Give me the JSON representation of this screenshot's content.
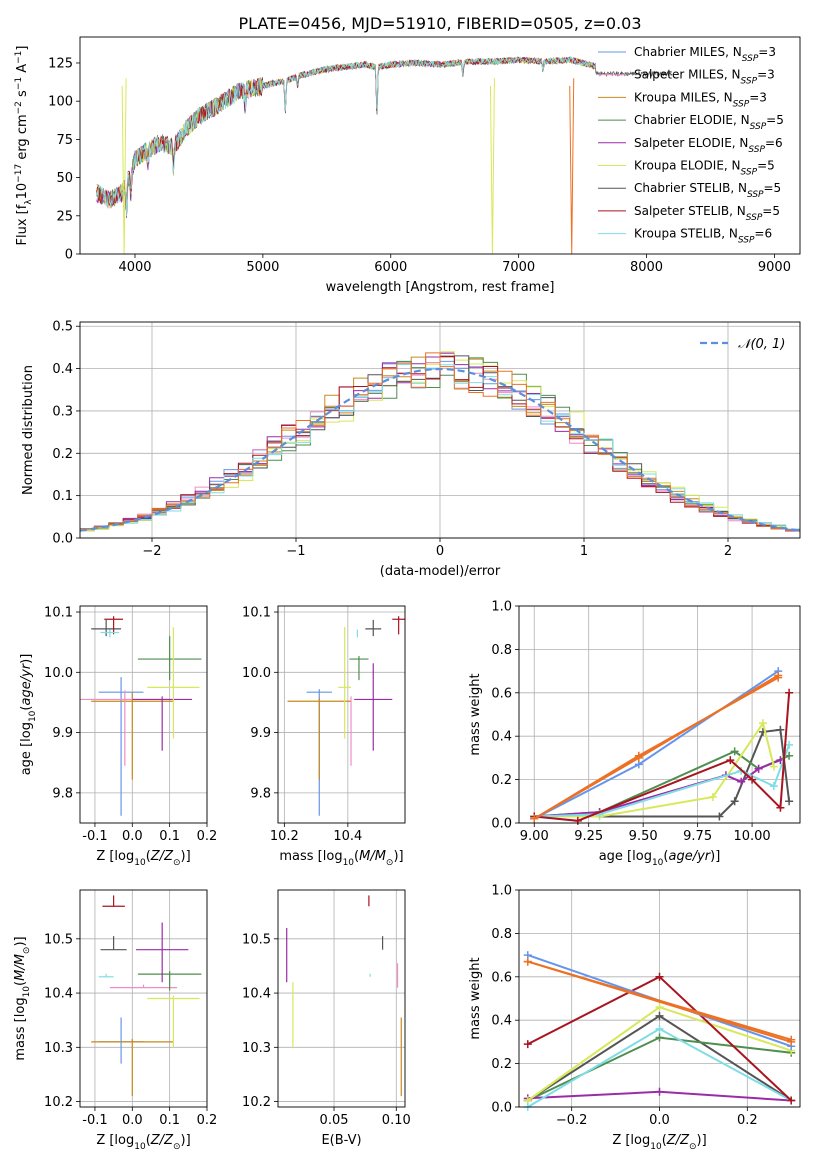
{
  "figure_title": "PLATE=0456, MJD=51910, FIBERID=0505, z=0.03",
  "colors": {
    "Chabrier MILES": "#6495ED",
    "Salpeter MILES": "#F08CC6",
    "Kroupa MILES": "#C88A1E",
    "Chabrier ELODIE": "#4E8E4E",
    "Salpeter ELODIE": "#9B2CA8",
    "Kroupa ELODIE": "#D8E85A",
    "Chabrier STELIB": "#555555",
    "Salpeter STELIB": "#A81420",
    "Kroupa STELIB": "#7FDDE6",
    "orange_fit": "#ED7125",
    "gauss": "#5B8FDB"
  },
  "chart_data": [
    {
      "id": "spectrum",
      "type": "line",
      "title": "PLATE=0456, MJD=51910, FIBERID=0505, z=0.03",
      "xlabel": "wavelength [Angstrom, rest frame]",
      "ylabel": "Flux [f_λ 10^-17 erg cm^-2 s^-1 A^-1]",
      "xlim": [
        3570,
        9200
      ],
      "ylim": [
        0,
        142
      ],
      "xticks": [
        4000,
        5000,
        6000,
        7000,
        8000,
        9000
      ],
      "yticks": [
        0,
        25,
        50,
        75,
        100,
        125
      ],
      "grid": false,
      "legend_position": "top-right",
      "legend": [
        {
          "label": "Chabrier MILES, N",
          "sub": "SSP",
          "value": "=3",
          "color": "#6495ED"
        },
        {
          "label": "Salpeter MILES, N",
          "sub": "SSP",
          "value": "=3",
          "color": "#F08CC6"
        },
        {
          "label": "Kroupa MILES, N",
          "sub": "SSP",
          "value": "=3",
          "color": "#C88A1E"
        },
        {
          "label": "Chabrier ELODIE, N",
          "sub": "SSP",
          "value": "=5",
          "color": "#4E8E4E"
        },
        {
          "label": "Salpeter ELODIE, N",
          "sub": "SSP",
          "value": "=6",
          "color": "#9B2CA8"
        },
        {
          "label": "Kroupa ELODIE, N",
          "sub": "SSP",
          "value": "=5",
          "color": "#D8E85A"
        },
        {
          "label": "Chabrier STELIB, N",
          "sub": "SSP",
          "value": "=5",
          "color": "#555555"
        },
        {
          "label": "Salpeter STELIB, N",
          "sub": "SSP",
          "value": "=5",
          "color": "#A81420"
        },
        {
          "label": "Kroupa STELIB, N",
          "sub": "SSP",
          "value": "=6",
          "color": "#7FDDE6"
        }
      ],
      "continuum": [
        [
          3700,
          40
        ],
        [
          3800,
          35
        ],
        [
          3900,
          40
        ],
        [
          3960,
          52
        ],
        [
          4000,
          62
        ],
        [
          4100,
          68
        ],
        [
          4200,
          73
        ],
        [
          4300,
          70
        ],
        [
          4400,
          82
        ],
        [
          4500,
          90
        ],
        [
          4600,
          95
        ],
        [
          4700,
          100
        ],
        [
          4800,
          106
        ],
        [
          4900,
          108
        ],
        [
          5000,
          110
        ],
        [
          5100,
          112
        ],
        [
          5200,
          114
        ],
        [
          5300,
          117
        ],
        [
          5400,
          119
        ],
        [
          5500,
          121
        ],
        [
          5600,
          122
        ],
        [
          5700,
          123
        ],
        [
          5800,
          124
        ],
        [
          5900,
          122
        ],
        [
          6000,
          124
        ],
        [
          6200,
          125
        ],
        [
          6400,
          124
        ],
        [
          6600,
          126
        ],
        [
          6800,
          126
        ],
        [
          7000,
          127
        ],
        [
          7200,
          126
        ],
        [
          7400,
          127
        ],
        [
          7600,
          123
        ]
      ],
      "absorption": [
        [
          3933,
          18
        ],
        [
          3968,
          16
        ],
        [
          4102,
          9
        ],
        [
          4300,
          14
        ],
        [
          4861,
          10
        ],
        [
          5175,
          20
        ],
        [
          5270,
          6
        ],
        [
          5892,
          30
        ],
        [
          6563,
          8
        ],
        [
          7190,
          5
        ]
      ],
      "model_end": 7600,
      "drops": [
        {
          "x": 3915,
          "color": "#D8E85A"
        },
        {
          "x": 6795,
          "color": "#D8E85A"
        },
        {
          "x": 7415,
          "color": "#ED7125"
        }
      ]
    },
    {
      "id": "residual_histogram",
      "type": "histogram",
      "xlabel": "(data-model)/error",
      "ylabel": "Normed distribution",
      "xlim": [
        -2.5,
        2.5
      ],
      "ylim": [
        0,
        0.51
      ],
      "xticks": [
        -2,
        -1,
        0,
        1,
        2
      ],
      "yticks": [
        0.0,
        0.1,
        0.2,
        0.3,
        0.4,
        0.5
      ],
      "grid": true,
      "bin_width": 0.1,
      "legend_position": "top-right",
      "legend": {
        "label": "𝒩(0, 1)",
        "style": "dashed"
      },
      "reference_curve": "standard normal"
    },
    {
      "id": "age_vs_Z",
      "type": "errorbar",
      "xlabel": "Z [log10(Z/Z⊙)]",
      "ylabel": "age [log10(age/yr)]",
      "xlim": [
        -0.14,
        0.2
      ],
      "ylim": [
        9.75,
        10.11
      ],
      "xticks": [
        -0.1,
        0.0,
        0.1,
        0.2
      ],
      "yticks": [
        9.8,
        9.9,
        10.0,
        10.1
      ],
      "grid": true,
      "points": [
        {
          "series": "Chabrier MILES",
          "x": -0.03,
          "xerr": 0.06,
          "y": 9.967,
          "yerr_lo": 0.205,
          "yerr_hi": 0.025
        },
        {
          "series": "Kroupa MILES",
          "x": 0.0,
          "xerr": 0.11,
          "y": 9.952,
          "yerr_lo": 0.13,
          "yerr_hi": 0.015
        },
        {
          "series": "Salpeter MILES",
          "x": -0.02,
          "xerr": 0.12,
          "y": 9.955,
          "yerr_lo": 0.11,
          "yerr_hi": 0.015
        },
        {
          "series": "Chabrier ELODIE",
          "x": 0.1,
          "xerr": 0.085,
          "y": 10.022,
          "yerr_lo": 0.035,
          "yerr_hi": 0.038
        },
        {
          "series": "Salpeter ELODIE",
          "x": 0.08,
          "xerr": 0.08,
          "y": 9.955,
          "yerr_lo": 0.085,
          "yerr_hi": 0.0
        },
        {
          "series": "Kroupa ELODIE",
          "x": 0.11,
          "xerr": 0.07,
          "y": 9.975,
          "yerr_lo": 0.085,
          "yerr_hi": 0.1
        },
        {
          "series": "Chabrier STELIB",
          "x": -0.07,
          "xerr": 0.04,
          "y": 10.072,
          "yerr_lo": 0.012,
          "yerr_hi": 0.015
        },
        {
          "series": "Salpeter STELIB",
          "x": -0.05,
          "xerr": 0.025,
          "y": 10.088,
          "yerr_lo": 0.025,
          "yerr_hi": 0.0
        },
        {
          "series": "Kroupa STELIB",
          "x": -0.06,
          "xerr": 0.025,
          "y": 10.066,
          "yerr_lo": 0.008,
          "yerr_hi": 0.0
        }
      ]
    },
    {
      "id": "age_vs_mass",
      "type": "errorbar",
      "xlabel": "mass [log10(M/M⊙)]",
      "ylabel": "",
      "xlim": [
        10.18,
        10.58
      ],
      "ylim": [
        9.75,
        10.11
      ],
      "xticks": [
        10.2,
        10.4
      ],
      "yticks": [
        9.8,
        9.9,
        10.0,
        10.1
      ],
      "grid": true,
      "points": [
        {
          "series": "Chabrier MILES",
          "x": 10.31,
          "xerr": 0.04,
          "y": 9.967,
          "yerr_lo": 0.205,
          "yerr_hi": 0.0
        },
        {
          "series": "Kroupa MILES",
          "x": 10.31,
          "xerr": 0.1,
          "y": 9.952,
          "yerr_lo": 0.13,
          "yerr_hi": 0.0
        },
        {
          "series": "Salpeter MILES",
          "x": 10.41,
          "xerr": 0.0,
          "y": 9.955,
          "yerr_lo": 0.11,
          "yerr_hi": 0.0
        },
        {
          "series": "Chabrier ELODIE",
          "x": 10.435,
          "xerr": 0.03,
          "y": 10.022,
          "yerr_lo": 0.035,
          "yerr_hi": 0.0
        },
        {
          "series": "Salpeter ELODIE",
          "x": 10.48,
          "xerr": 0.06,
          "y": 9.955,
          "yerr_lo": 0.085,
          "yerr_hi": 0.06
        },
        {
          "series": "Kroupa ELODIE",
          "x": 10.39,
          "xerr": 0.02,
          "y": 9.975,
          "yerr_lo": 0.085,
          "yerr_hi": 0.1
        },
        {
          "series": "Chabrier STELIB",
          "x": 10.48,
          "xerr": 0.025,
          "y": 10.072,
          "yerr_lo": 0.012,
          "yerr_hi": 0.015
        },
        {
          "series": "Salpeter STELIB",
          "x": 10.56,
          "xerr": 0.02,
          "y": 10.088,
          "yerr_lo": 0.025,
          "yerr_hi": 0.0
        },
        {
          "series": "Kroupa STELIB",
          "x": 10.43,
          "xerr": 0.0,
          "y": 10.066,
          "yerr_lo": 0.008,
          "yerr_hi": 0.0
        }
      ]
    },
    {
      "id": "mass_weight_vs_age",
      "type": "line",
      "xlabel": "age [log10(age/yr)]",
      "ylabel": "mass weight",
      "xlim": [
        8.93,
        10.22
      ],
      "ylim": [
        0,
        1
      ],
      "xticks": [
        9.0,
        9.25,
        9.5,
        9.75,
        10.0
      ],
      "yticks": [
        0.0,
        0.2,
        0.4,
        0.6,
        0.8,
        1.0
      ],
      "grid": true,
      "series": [
        {
          "name": "Chabrier MILES",
          "x": [
            9.0,
            9.48,
            10.12
          ],
          "y": [
            0.02,
            0.27,
            0.7
          ]
        },
        {
          "name": "Kroupa MILES",
          "x": [
            9.0,
            9.48,
            10.12
          ],
          "y": [
            0.02,
            0.31,
            0.67
          ]
        },
        {
          "name": "Salpeter MILES",
          "x": [
            9.0,
            9.48,
            10.12
          ],
          "y": [
            0.02,
            0.3,
            0.68
          ]
        },
        {
          "name": "Chabrier ELODIE",
          "x": [
            9.0,
            9.3,
            9.92,
            10.03,
            10.17
          ],
          "y": [
            0.03,
            0.05,
            0.33,
            0.25,
            0.31
          ]
        },
        {
          "name": "Salpeter ELODIE",
          "x": [
            9.0,
            9.3,
            9.88,
            9.95,
            10.03,
            10.13
          ],
          "y": [
            0.03,
            0.05,
            0.22,
            0.19,
            0.25,
            0.29
          ]
        },
        {
          "name": "Kroupa ELODIE",
          "x": [
            9.0,
            9.3,
            9.82,
            10.05,
            10.1
          ],
          "y": [
            0.03,
            0.03,
            0.12,
            0.46,
            0.26
          ]
        },
        {
          "name": "Chabrier STELIB",
          "x": [
            9.0,
            9.85,
            9.92,
            10.05,
            10.13,
            10.17
          ],
          "y": [
            0.03,
            0.03,
            0.1,
            0.42,
            0.43,
            0.1
          ]
        },
        {
          "name": "Salpeter STELIB",
          "x": [
            9.0,
            9.2,
            9.9,
            10.0,
            10.13,
            10.17
          ],
          "y": [
            0.03,
            0.01,
            0.29,
            0.2,
            0.07,
            0.6
          ]
        },
        {
          "name": "Kroupa STELIB",
          "x": [
            9.0,
            9.3,
            9.95,
            10.1,
            10.17
          ],
          "y": [
            0.03,
            0.04,
            0.24,
            0.17,
            0.36
          ]
        }
      ]
    },
    {
      "id": "mass_vs_Z",
      "type": "errorbar",
      "xlabel": "Z [log10(Z/Z⊙)]",
      "ylabel": "mass [log10(M/M⊙)]",
      "xlim": [
        -0.14,
        0.2
      ],
      "ylim": [
        10.19,
        10.59
      ],
      "xticks": [
        -0.1,
        0.0,
        0.1,
        0.2
      ],
      "yticks": [
        10.2,
        10.3,
        10.4,
        10.5
      ],
      "grid": true,
      "points": [
        {
          "series": "Chabrier MILES",
          "x": -0.03,
          "xerr": 0.06,
          "y": 10.31,
          "yerr_lo": 0.04,
          "yerr_hi": 0.045
        },
        {
          "series": "Kroupa MILES",
          "x": 0.0,
          "xerr": 0.11,
          "y": 10.31,
          "yerr_lo": 0.1,
          "yerr_hi": 0.0
        },
        {
          "series": "Salpeter MILES",
          "x": 0.03,
          "xerr": 0.09,
          "y": 10.41,
          "yerr_lo": 0.0,
          "yerr_hi": 0.0
        },
        {
          "series": "Chabrier ELODIE",
          "x": 0.1,
          "xerr": 0.085,
          "y": 10.435,
          "yerr_lo": 0.03,
          "yerr_hi": 0.0
        },
        {
          "series": "Salpeter ELODIE",
          "x": 0.08,
          "xerr": 0.07,
          "y": 10.48,
          "yerr_lo": 0.06,
          "yerr_hi": 0.05
        },
        {
          "series": "Kroupa ELODIE",
          "x": 0.11,
          "xerr": 0.07,
          "y": 10.39,
          "yerr_lo": 0.09,
          "yerr_hi": 0.0
        },
        {
          "series": "Chabrier STELIB",
          "x": -0.05,
          "xerr": 0.035,
          "y": 10.48,
          "yerr_lo": 0.0,
          "yerr_hi": 0.025
        },
        {
          "series": "Salpeter STELIB",
          "x": -0.05,
          "xerr": 0.03,
          "y": 10.56,
          "yerr_lo": 0.0,
          "yerr_hi": 0.02
        },
        {
          "series": "Kroupa STELIB",
          "x": -0.07,
          "xerr": 0.02,
          "y": 10.43,
          "yerr_lo": 0.0,
          "yerr_hi": 0.0
        }
      ]
    },
    {
      "id": "mass_vs_EBV",
      "type": "errorbar",
      "xlabel": "E(B-V)",
      "ylabel": "",
      "xlim": [
        0.005,
        0.107
      ],
      "ylim": [
        10.19,
        10.59
      ],
      "xticks": [
        0.05,
        0.1
      ],
      "yticks": [
        10.2,
        10.3,
        10.4,
        10.5
      ],
      "grid": true,
      "points": [
        {
          "series": "Kroupa MILES",
          "x": 0.104,
          "xerr": 0,
          "y": 10.31,
          "yerr_lo": 0.1,
          "yerr_hi": 0.045
        },
        {
          "series": "Salpeter MILES",
          "x": 0.101,
          "xerr": 0,
          "y": 10.41,
          "yerr_lo": 0.0,
          "yerr_hi": 0.045
        },
        {
          "series": "Salpeter ELODIE",
          "x": 0.012,
          "xerr": 0,
          "y": 10.48,
          "yerr_lo": 0.06,
          "yerr_hi": 0.04
        },
        {
          "series": "Kroupa ELODIE",
          "x": 0.017,
          "xerr": 0,
          "y": 10.39,
          "yerr_lo": 0.09,
          "yerr_hi": 0.03
        },
        {
          "series": "Chabrier STELIB",
          "x": 0.089,
          "xerr": 0,
          "y": 10.48,
          "yerr_lo": 0.0,
          "yerr_hi": 0.025
        },
        {
          "series": "Salpeter STELIB",
          "x": 0.078,
          "xerr": 0,
          "y": 10.56,
          "yerr_lo": 0.0,
          "yerr_hi": 0.02
        },
        {
          "series": "Kroupa STELIB",
          "x": 0.079,
          "xerr": 0,
          "y": 10.43,
          "yerr_lo": 0.0,
          "yerr_hi": 0.0
        }
      ]
    },
    {
      "id": "mass_weight_vs_Z",
      "type": "line",
      "xlabel": "Z [log10(Z/Z⊙)]",
      "ylabel": "mass weight",
      "xlim": [
        -0.32,
        0.32
      ],
      "ylim": [
        0,
        1
      ],
      "xticks": [
        -0.2,
        0.0,
        0.2
      ],
      "yticks": [
        0.0,
        0.2,
        0.4,
        0.6,
        0.8,
        1.0
      ],
      "grid": true,
      "series": [
        {
          "name": "Chabrier MILES",
          "x": [
            -0.3,
            0.3
          ],
          "y": [
            0.7,
            0.28
          ]
        },
        {
          "name": "Kroupa MILES",
          "x": [
            -0.3,
            0.3
          ],
          "y": [
            0.67,
            0.31
          ]
        },
        {
          "name": "Salpeter MILES",
          "x": [
            -0.3,
            0.3
          ],
          "y": [
            0.67,
            0.3
          ]
        },
        {
          "name": "Chabrier ELODIE",
          "x": [
            -0.3,
            0.0,
            0.3
          ],
          "y": [
            0.03,
            0.32,
            0.25
          ]
        },
        {
          "name": "Salpeter ELODIE",
          "x": [
            -0.3,
            0.0,
            0.3
          ],
          "y": [
            0.04,
            0.07,
            0.03
          ]
        },
        {
          "name": "Kroupa ELODIE",
          "x": [
            -0.3,
            0.0,
            0.3
          ],
          "y": [
            0.03,
            0.46,
            0.26
          ]
        },
        {
          "name": "Chabrier STELIB",
          "x": [
            -0.3,
            0.0,
            0.3
          ],
          "y": [
            0.03,
            0.42,
            0.03
          ]
        },
        {
          "name": "Salpeter STELIB",
          "x": [
            -0.3,
            0.0,
            0.3
          ],
          "y": [
            0.29,
            0.6,
            0.03
          ]
        },
        {
          "name": "Kroupa STELIB",
          "x": [
            -0.3,
            0.0,
            0.3
          ],
          "y": [
            0.0,
            0.36,
            0.03
          ]
        }
      ]
    }
  ]
}
